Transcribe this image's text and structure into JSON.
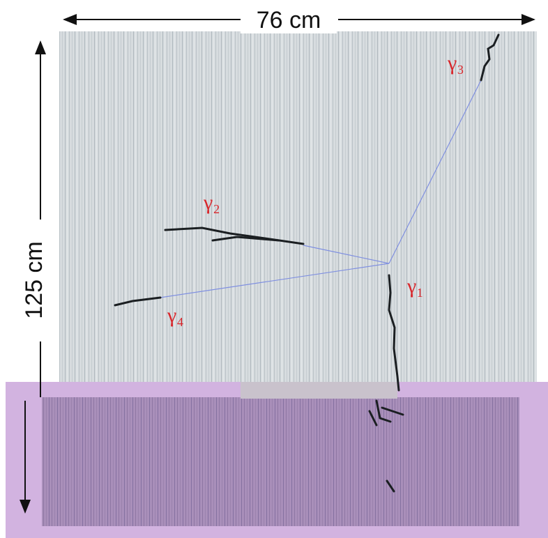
{
  "dimensions": {
    "width": "76 cm",
    "height": "125 cm"
  },
  "tracks": [
    {
      "label": "γ₁"
    },
    {
      "label": "γ₂"
    },
    {
      "label": "γ₃"
    },
    {
      "label": "γ₄"
    }
  ]
}
